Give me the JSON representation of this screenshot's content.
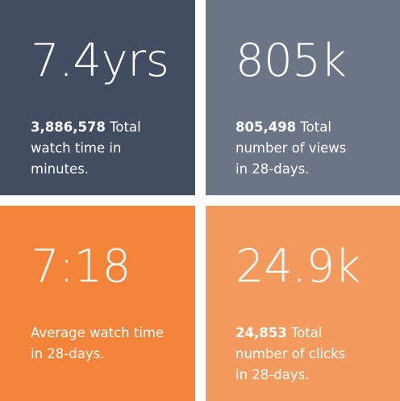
{
  "tiles": [
    {
      "value": "7.4yrs",
      "highlight": "3,886,578",
      "text_lines": [
        " Total",
        "watch time in",
        "minutes."
      ],
      "background": "#424d61"
    },
    {
      "value": "805k",
      "highlight": "805,498",
      "text_lines": [
        " Total",
        "number of views",
        "in 28-days."
      ],
      "background": "#6b7586"
    },
    {
      "value": "7:18",
      "highlight": "",
      "text_lines": [
        "Average watch time",
        "in 28-days."
      ],
      "background": "#f3843a"
    },
    {
      "value": "24.9k",
      "highlight": "24,853",
      "text_lines": [
        " Total",
        "number of clicks",
        "in 28-days."
      ],
      "background": "#f39b5f"
    }
  ]
}
